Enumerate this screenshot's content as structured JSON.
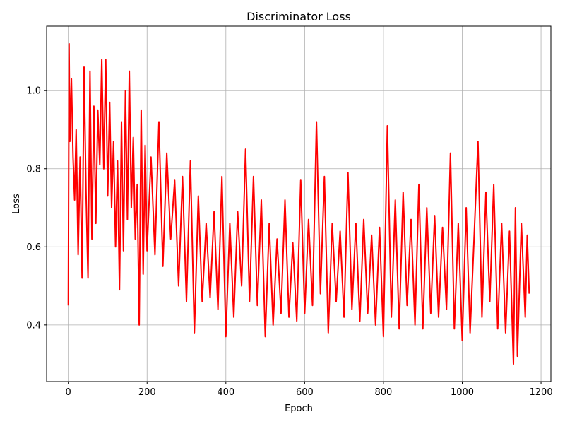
{
  "chart_data": {
    "type": "line",
    "title": "Discriminator Loss",
    "xlabel": "Epoch",
    "ylabel": "Loss",
    "xlim": [
      -55,
      1225
    ],
    "ylim": [
      0.255,
      1.165
    ],
    "xticks": [
      0,
      200,
      400,
      600,
      800,
      1000,
      1200
    ],
    "yticks": [
      0.4,
      0.6,
      0.8,
      1.0
    ],
    "ytick_labels": [
      "0.4",
      "0.6",
      "0.8",
      "1.0"
    ],
    "grid": true,
    "series": [
      {
        "color": "#ff0000",
        "x": [
          0,
          2,
          4,
          8,
          12,
          16,
          20,
          25,
          30,
          35,
          40,
          45,
          50,
          55,
          60,
          65,
          70,
          75,
          80,
          85,
          90,
          95,
          100,
          105,
          110,
          115,
          120,
          125,
          130,
          135,
          140,
          145,
          150,
          155,
          160,
          165,
          170,
          175,
          180,
          185,
          190,
          195,
          200,
          210,
          220,
          230,
          240,
          250,
          260,
          270,
          280,
          290,
          300,
          310,
          320,
          330,
          340,
          350,
          360,
          370,
          380,
          390,
          400,
          410,
          420,
          430,
          440,
          450,
          460,
          470,
          480,
          490,
          500,
          510,
          520,
          530,
          540,
          550,
          560,
          570,
          580,
          590,
          600,
          610,
          620,
          630,
          640,
          650,
          660,
          670,
          680,
          690,
          700,
          710,
          720,
          730,
          740,
          750,
          760,
          770,
          780,
          790,
          800,
          810,
          820,
          830,
          840,
          850,
          860,
          870,
          880,
          890,
          900,
          910,
          920,
          930,
          940,
          950,
          960,
          970,
          980,
          990,
          1000,
          1010,
          1020,
          1030,
          1040,
          1050,
          1060,
          1070,
          1080,
          1090,
          1100,
          1110,
          1120,
          1130,
          1135,
          1140,
          1150,
          1160,
          1165,
          1170
        ],
        "y": [
          0.45,
          1.12,
          0.87,
          1.03,
          0.83,
          0.72,
          0.9,
          0.58,
          0.83,
          0.52,
          1.06,
          0.74,
          0.52,
          1.05,
          0.62,
          0.96,
          0.66,
          0.95,
          0.81,
          1.08,
          0.8,
          1.08,
          0.73,
          0.97,
          0.7,
          0.87,
          0.6,
          0.82,
          0.49,
          0.92,
          0.59,
          1.0,
          0.67,
          1.05,
          0.7,
          0.88,
          0.62,
          0.76,
          0.4,
          0.95,
          0.53,
          0.86,
          0.59,
          0.83,
          0.58,
          0.92,
          0.55,
          0.84,
          0.62,
          0.77,
          0.5,
          0.78,
          0.46,
          0.82,
          0.38,
          0.73,
          0.46,
          0.66,
          0.47,
          0.69,
          0.44,
          0.78,
          0.37,
          0.66,
          0.42,
          0.69,
          0.5,
          0.85,
          0.46,
          0.78,
          0.45,
          0.72,
          0.37,
          0.66,
          0.4,
          0.62,
          0.43,
          0.72,
          0.42,
          0.61,
          0.41,
          0.77,
          0.43,
          0.67,
          0.45,
          0.92,
          0.48,
          0.78,
          0.38,
          0.66,
          0.46,
          0.64,
          0.42,
          0.79,
          0.44,
          0.66,
          0.41,
          0.67,
          0.43,
          0.63,
          0.4,
          0.65,
          0.37,
          0.91,
          0.42,
          0.72,
          0.39,
          0.74,
          0.45,
          0.67,
          0.4,
          0.76,
          0.39,
          0.7,
          0.43,
          0.68,
          0.42,
          0.65,
          0.44,
          0.84,
          0.39,
          0.66,
          0.36,
          0.7,
          0.38,
          0.62,
          0.87,
          0.42,
          0.74,
          0.46,
          0.76,
          0.39,
          0.66,
          0.38,
          0.64,
          0.3,
          0.7,
          0.32,
          0.66,
          0.42,
          0.63,
          0.48
        ]
      }
    ]
  }
}
